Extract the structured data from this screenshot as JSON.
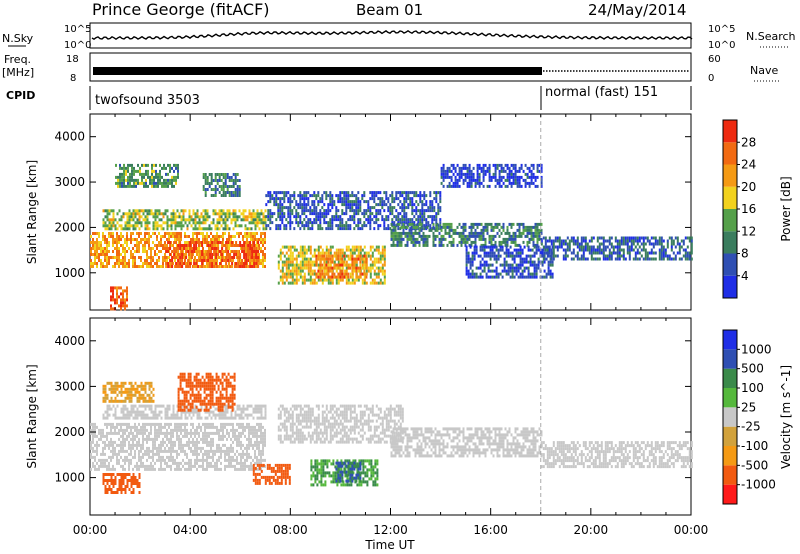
{
  "header": {
    "title": "Prince George (fitACF)",
    "beam": "Beam 01",
    "date": "24/May/2014"
  },
  "strip_labels": {
    "nsky": "N.Sky",
    "nsky_top": "10^5",
    "nsky_bottom": "10^0",
    "nsearch": "N.Search",
    "nsearch_top": "10^5",
    "nsearch_bottom": "10^0",
    "freq_l1": "Freq.",
    "freq_l2": "[MHz]",
    "freq_top": "18",
    "freq_bottom": "8",
    "nave": "Nave",
    "nave_top": "60",
    "nave_bottom": "0",
    "cpid": "CPID",
    "cpid_1": "twofsound 3503",
    "cpid_2": "normal (fast) 151"
  },
  "colors": {
    "power": [
      "#1f2ee6",
      "#2f4fb3",
      "#3a7d5e",
      "#55a04a",
      "#f2d21e",
      "#f59a14",
      "#f26a12",
      "#ee2a10"
    ],
    "velocity": [
      "#ff1a1a",
      "#f25a10",
      "#f59a14",
      "#d2a23c",
      "#c8c8c8",
      "#55b83c",
      "#3a8a4a",
      "#2f4fb3",
      "#1f2ee6"
    ]
  },
  "chart_data": [
    {
      "type": "heatmap",
      "name": "power",
      "ylabel": "Slant Range [km]",
      "xlabel": "Time UT",
      "x_ticks": [
        "00:00",
        "04:00",
        "08:00",
        "12:00",
        "16:00",
        "20:00",
        "00:00"
      ],
      "y_ticks": [
        1000,
        2000,
        3000,
        4000
      ],
      "ylim": [
        180,
        4500
      ],
      "xlim_hours": [
        0,
        24
      ],
      "colorbar_label": "Power [dB]",
      "colorbar_ticks": [
        4,
        8,
        12,
        16,
        20,
        24,
        28
      ],
      "colorbar_range": [
        0,
        32
      ],
      "mode_change_hour": 18,
      "regions": [
        {
          "t0": 0.0,
          "t1": 7.0,
          "r0": 1150,
          "r1": 1900,
          "value": 22
        },
        {
          "t0": 3.0,
          "t1": 6.7,
          "r0": 1150,
          "r1": 1700,
          "value": 27
        },
        {
          "t0": 0.5,
          "t1": 7.0,
          "r0": 1950,
          "r1": 2400,
          "value": 16
        },
        {
          "t0": 1.0,
          "t1": 3.5,
          "r0": 2900,
          "r1": 3400,
          "value": 12
        },
        {
          "t0": 4.5,
          "t1": 6.0,
          "r0": 2700,
          "r1": 3200,
          "value": 10
        },
        {
          "t0": 7.5,
          "t1": 11.8,
          "r0": 800,
          "r1": 1600,
          "value": 18
        },
        {
          "t0": 9.0,
          "t1": 11.0,
          "r0": 900,
          "r1": 1400,
          "value": 24
        },
        {
          "t0": 7.0,
          "t1": 14.0,
          "r0": 2000,
          "r1": 2800,
          "value": 6
        },
        {
          "t0": 12.0,
          "t1": 18.0,
          "r0": 1600,
          "r1": 2100,
          "value": 10
        },
        {
          "t0": 15.0,
          "t1": 18.5,
          "r0": 900,
          "r1": 1600,
          "value": 5
        },
        {
          "t0": 18.0,
          "t1": 24.0,
          "r0": 1300,
          "r1": 1800,
          "value": 7
        },
        {
          "t0": 14.0,
          "t1": 18.0,
          "r0": 2900,
          "r1": 3400,
          "value": 4
        },
        {
          "t0": 0.8,
          "t1": 1.5,
          "r0": 200,
          "r1": 700,
          "value": 28
        }
      ]
    },
    {
      "type": "heatmap",
      "name": "velocity",
      "ylabel": "Slant Range [km]",
      "xlabel": "Time UT",
      "x_ticks": [
        "00:00",
        "04:00",
        "08:00",
        "12:00",
        "16:00",
        "20:00",
        "00:00"
      ],
      "y_ticks": [
        1000,
        2000,
        3000,
        4000
      ],
      "ylim": [
        180,
        4500
      ],
      "xlim_hours": [
        0,
        24
      ],
      "colorbar_label": "Velocity [m s^-1]",
      "colorbar_ticks": [
        "1000",
        "500",
        "100",
        "25",
        "-25",
        "-100",
        "-500",
        "-1000"
      ],
      "regions": [
        {
          "t0": 0.0,
          "t1": 7.0,
          "r0": 1150,
          "r1": 2200,
          "value": 0
        },
        {
          "t0": 0.5,
          "t1": 7.0,
          "r0": 2300,
          "r1": 2600,
          "value": 0
        },
        {
          "t0": 0.5,
          "t1": 2.5,
          "r0": 2700,
          "r1": 3100,
          "value": -60
        },
        {
          "t0": 3.5,
          "t1": 5.8,
          "r0": 2500,
          "r1": 3300,
          "value": -300
        },
        {
          "t0": 8.8,
          "t1": 11.5,
          "r0": 850,
          "r1": 1400,
          "value": 100
        },
        {
          "t0": 9.8,
          "t1": 10.8,
          "r0": 900,
          "r1": 1350,
          "value": 300
        },
        {
          "t0": 7.5,
          "t1": 12.5,
          "r0": 1800,
          "r1": 2600,
          "value": 0
        },
        {
          "t0": 12.0,
          "t1": 18.0,
          "r0": 1500,
          "r1": 2100,
          "value": 0
        },
        {
          "t0": 18.0,
          "t1": 24.0,
          "r0": 1250,
          "r1": 1800,
          "value": 0
        },
        {
          "t0": 6.5,
          "t1": 8.0,
          "r0": 900,
          "r1": 1300,
          "value": -300
        },
        {
          "t0": 0.5,
          "t1": 2.0,
          "r0": 700,
          "r1": 1100,
          "value": -150
        }
      ]
    }
  ]
}
